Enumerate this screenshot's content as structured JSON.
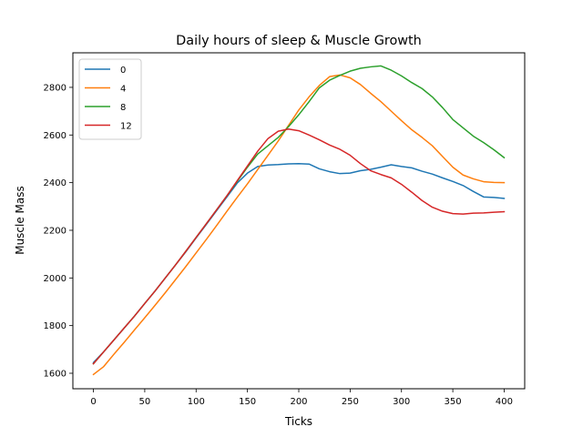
{
  "chart_data": {
    "type": "line",
    "title": "Daily hours of sleep & Muscle Growth",
    "xlabel": "Ticks",
    "ylabel": "Muscle Mass",
    "xlim": [
      -20,
      420
    ],
    "ylim": [
      1535,
      2945
    ],
    "x_ticks": [
      0,
      50,
      100,
      150,
      200,
      250,
      300,
      350,
      400
    ],
    "y_ticks": [
      1600,
      1800,
      2000,
      2200,
      2400,
      2600,
      2800
    ],
    "grid": false,
    "legend_position": "top-left",
    "x": [
      0,
      10,
      20,
      30,
      40,
      50,
      60,
      70,
      80,
      90,
      100,
      110,
      120,
      130,
      140,
      150,
      160,
      170,
      180,
      190,
      200,
      210,
      220,
      230,
      240,
      250,
      260,
      270,
      280,
      290,
      300,
      310,
      320,
      330,
      340,
      350,
      360,
      370,
      380,
      390,
      400
    ],
    "series": [
      {
        "name": "0",
        "color": "#1f77b4",
        "values": [
          1645,
          1690,
          1740,
          1790,
          1840,
          1893,
          1945,
          2000,
          2055,
          2110,
          2168,
          2225,
          2283,
          2340,
          2398,
          2440,
          2468,
          2474,
          2476,
          2479,
          2480,
          2478,
          2458,
          2446,
          2438,
          2440,
          2450,
          2456,
          2465,
          2475,
          2468,
          2462,
          2448,
          2436,
          2420,
          2405,
          2388,
          2363,
          2340,
          2338,
          2334
        ]
      },
      {
        "name": "4",
        "color": "#ff7f0e",
        "values": [
          1595,
          1628,
          1680,
          1730,
          1782,
          1833,
          1885,
          1938,
          1993,
          2048,
          2105,
          2162,
          2220,
          2280,
          2338,
          2395,
          2455,
          2515,
          2575,
          2640,
          2705,
          2760,
          2808,
          2845,
          2852,
          2840,
          2812,
          2775,
          2740,
          2700,
          2660,
          2622,
          2590,
          2555,
          2510,
          2465,
          2432,
          2416,
          2404,
          2401,
          2400
        ]
      },
      {
        "name": "8",
        "color": "#2ca02c",
        "values": [
          1640,
          1690,
          1740,
          1790,
          1840,
          1893,
          1945,
          2000,
          2055,
          2112,
          2170,
          2228,
          2286,
          2345,
          2405,
          2465,
          2520,
          2555,
          2590,
          2635,
          2685,
          2740,
          2798,
          2830,
          2850,
          2868,
          2880,
          2886,
          2890,
          2872,
          2848,
          2820,
          2795,
          2760,
          2715,
          2665,
          2630,
          2595,
          2568,
          2538,
          2505
        ]
      },
      {
        "name": "12",
        "color": "#d62728",
        "values": [
          1640,
          1690,
          1740,
          1790,
          1840,
          1893,
          1945,
          2000,
          2055,
          2112,
          2170,
          2228,
          2286,
          2345,
          2408,
          2470,
          2532,
          2585,
          2616,
          2625,
          2618,
          2600,
          2580,
          2558,
          2540,
          2515,
          2480,
          2450,
          2434,
          2420,
          2393,
          2360,
          2325,
          2297,
          2280,
          2270,
          2268,
          2272,
          2273,
          2276,
          2278
        ]
      }
    ]
  }
}
